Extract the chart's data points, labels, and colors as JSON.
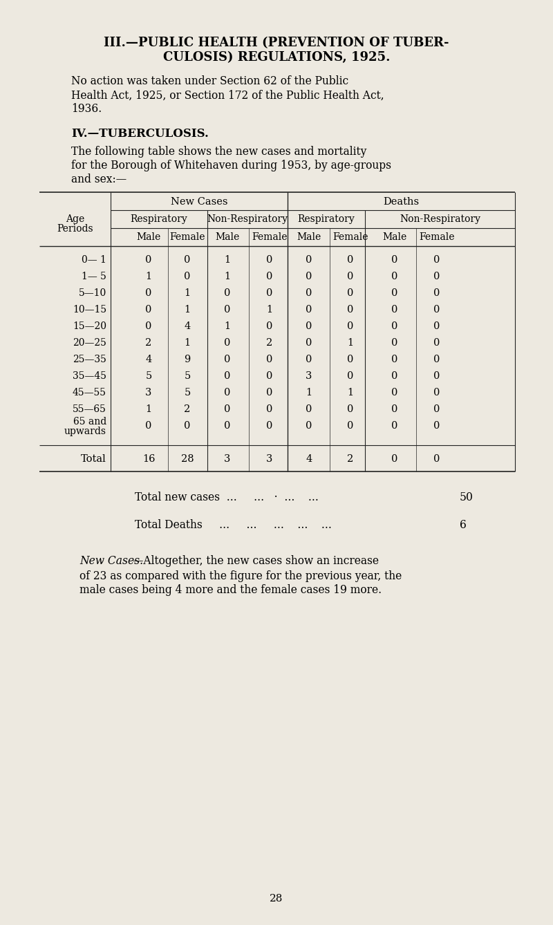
{
  "bg_color": "#ede9e0",
  "title_line1": "III.—PUBLIC HEALTH (PREVENTION OF TUBER-",
  "title_line2": "CULOSIS) REGULATIONS, 1925.",
  "para1_lines": [
    "No action was taken under Section 62 of the Public",
    "Health Act, 1925, or Section 172 of the Public Health Act,",
    "1936."
  ],
  "section_title": "IV.—TUBERCULOSIS.",
  "para2_lines": [
    "The following table shows the new cases and mortality",
    "for the Borough of Whitehaven during 1953, by age-groups",
    "and sex:—"
  ],
  "table_header_top": [
    "New Cases",
    "Deaths"
  ],
  "table_header_mid": [
    "Respiratory",
    "Non-Respiratory",
    "Respiratory",
    "Non-Respiratory"
  ],
  "table_header_bot": [
    "Male",
    "Female",
    "Male",
    "Female",
    "Male",
    "Female",
    "Male",
    "Female"
  ],
  "age_periods": [
    "0— 1",
    "1— 5",
    "5—10",
    "10—15",
    "15—20",
    "20—25",
    "25—35",
    "35—45",
    "45—55",
    "55—65",
    "65 and\nupwards"
  ],
  "table_data": [
    [
      0,
      0,
      1,
      0,
      0,
      0,
      0,
      0
    ],
    [
      1,
      0,
      1,
      0,
      0,
      0,
      0,
      0
    ],
    [
      0,
      1,
      0,
      0,
      0,
      0,
      0,
      0
    ],
    [
      0,
      1,
      0,
      1,
      0,
      0,
      0,
      0
    ],
    [
      0,
      4,
      1,
      0,
      0,
      0,
      0,
      0
    ],
    [
      2,
      1,
      0,
      2,
      0,
      1,
      0,
      0
    ],
    [
      4,
      9,
      0,
      0,
      0,
      0,
      0,
      0
    ],
    [
      5,
      5,
      0,
      0,
      3,
      0,
      0,
      0
    ],
    [
      3,
      5,
      0,
      0,
      1,
      1,
      0,
      0
    ],
    [
      1,
      2,
      0,
      0,
      0,
      0,
      0,
      0
    ],
    [
      0,
      0,
      0,
      0,
      0,
      0,
      0,
      0
    ]
  ],
  "totals": [
    16,
    28,
    3,
    3,
    4,
    2,
    0,
    0
  ],
  "page_number": "28"
}
